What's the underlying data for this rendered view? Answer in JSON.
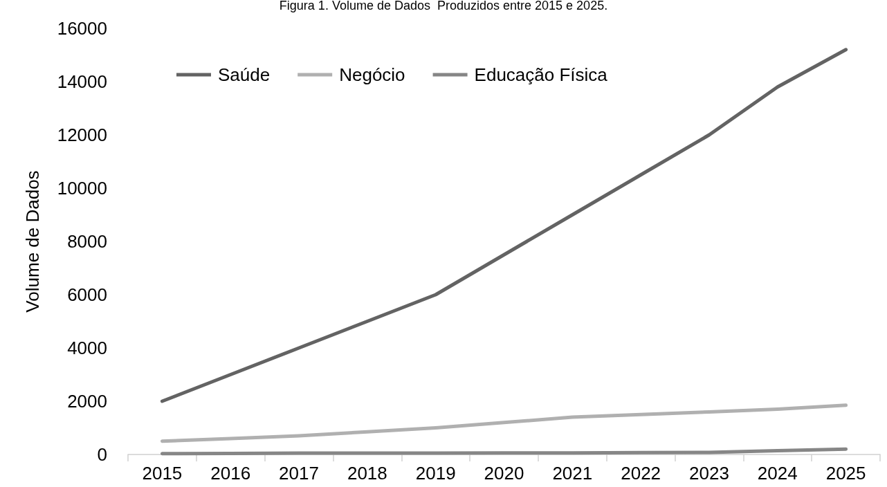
{
  "chart_data": {
    "type": "line",
    "title": "Figura 1. Volume de Dados  Produzidos entre 2015 e 2025.",
    "ylabel": "Volume de Dados",
    "categories": [
      "2015",
      "2016",
      "2017",
      "2018",
      "2019",
      "2020",
      "2021",
      "2022",
      "2023",
      "2024",
      "2025"
    ],
    "series": [
      {
        "name": "Saúde",
        "color": "#636363",
        "values": [
          2000,
          3000,
          4000,
          5000,
          6000,
          7500,
          9000,
          10500,
          12000,
          13800,
          15200
        ]
      },
      {
        "name": "Negócio",
        "color": "#b0b0b0",
        "values": [
          500,
          600,
          700,
          850,
          1000,
          1200,
          1400,
          1500,
          1600,
          1700,
          1850
        ]
      },
      {
        "name": "Educação Física",
        "color": "#868686",
        "values": [
          30,
          40,
          50,
          50,
          50,
          60,
          60,
          70,
          80,
          140,
          200
        ]
      }
    ],
    "ylim": [
      0,
      16000
    ],
    "yticks": [
      0,
      2000,
      4000,
      6000,
      8000,
      10000,
      12000,
      14000,
      16000
    ],
    "grid": false,
    "legend": "top left",
    "marker": "none",
    "line_style": "solid"
  }
}
